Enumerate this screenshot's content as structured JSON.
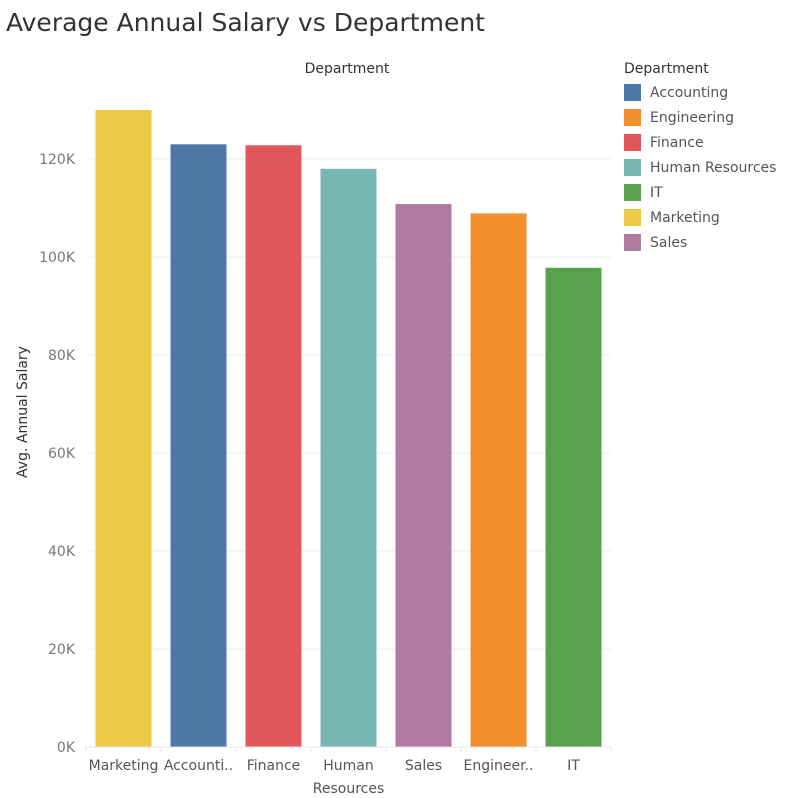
{
  "title": "Average Annual Salary vs Department",
  "chart_data": {
    "type": "bar",
    "title": "Average Annual Salary vs Department",
    "column_header": "Department",
    "ylabel": "Avg. Annual Salary",
    "ylim": [
      0,
      130000
    ],
    "yticks": [
      {
        "value": 0,
        "label": "0K"
      },
      {
        "value": 20000,
        "label": "20K"
      },
      {
        "value": 40000,
        "label": "40K"
      },
      {
        "value": 60000,
        "label": "60K"
      },
      {
        "value": 80000,
        "label": "80K"
      },
      {
        "value": 100000,
        "label": "100K"
      },
      {
        "value": 120000,
        "label": "120K"
      }
    ],
    "grid": true,
    "categories": [
      "Marketing",
      "Accounting",
      "Finance",
      "Human Resources",
      "Sales",
      "Engineering",
      "IT"
    ],
    "category_labels": [
      [
        "Marketing"
      ],
      [
        "Accounti.."
      ],
      [
        "Finance"
      ],
      [
        "Human",
        "Resources"
      ],
      [
        "Sales"
      ],
      [
        "Engineer.."
      ],
      [
        "IT"
      ]
    ],
    "values": [
      130000,
      123000,
      122800,
      118000,
      110800,
      108900,
      97800
    ],
    "colors": [
      "#EDC948",
      "#4E79A7",
      "#E15759",
      "#76B7B2",
      "#B07AA1",
      "#F28E2B",
      "#59A14F"
    ],
    "legend": {
      "title": "Department",
      "position": "right",
      "items": [
        {
          "label": "Accounting",
          "color": "#4E79A7"
        },
        {
          "label": "Engineering",
          "color": "#F28E2B"
        },
        {
          "label": "Finance",
          "color": "#E15759"
        },
        {
          "label": "Human Resources",
          "color": "#76B7B2"
        },
        {
          "label": "IT",
          "color": "#59A14F"
        },
        {
          "label": "Marketing",
          "color": "#EDC948"
        },
        {
          "label": "Sales",
          "color": "#B07AA1"
        }
      ]
    }
  }
}
